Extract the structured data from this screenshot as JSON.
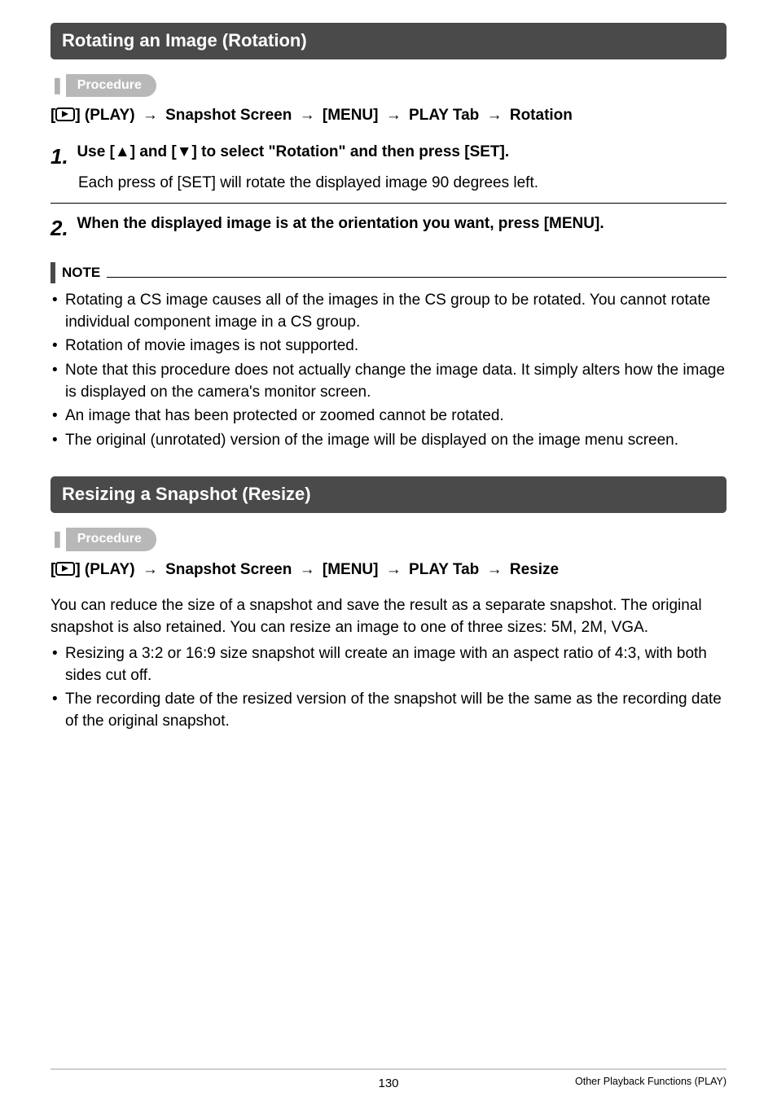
{
  "section1": {
    "title": "Rotating an Image (Rotation)",
    "procedure_label": "Procedure",
    "menu_path": {
      "prefix_bracket": "[",
      "suffix_bracket_label": "] (PLAY)",
      "arrow": "→",
      "seg2": "Snapshot Screen",
      "seg3": "[MENU]",
      "seg4": "PLAY Tab",
      "seg5": "Rotation"
    },
    "step1": {
      "num": "1.",
      "title": "Use [▲] and [▼] to select \"Rotation\" and then press [SET].",
      "body": "Each press of [SET] will rotate the displayed image 90 degrees left."
    },
    "step2": {
      "num": "2.",
      "title": "When the displayed image is at the orientation you want, press [MENU]."
    },
    "note_label": "NOTE",
    "notes": [
      "Rotating a CS image causes all of the images in the CS group to be rotated. You cannot rotate individual component image in a CS group.",
      "Rotation of movie images is not supported.",
      "Note that this procedure does not actually change the image data. It simply alters how the image is displayed on the camera's monitor screen.",
      "An image that has been protected or zoomed cannot be rotated.",
      "The original (unrotated) version of the image will be displayed on the image menu screen."
    ]
  },
  "section2": {
    "title": "Resizing a Snapshot (Resize)",
    "procedure_label": "Procedure",
    "menu_path": {
      "prefix_bracket": "[",
      "suffix_bracket_label": "] (PLAY)",
      "arrow": "→",
      "seg2": "Snapshot Screen",
      "seg3": "[MENU]",
      "seg4": "PLAY Tab",
      "seg5": "Resize"
    },
    "intro": "You can reduce the size of a snapshot and save the result as a separate snapshot. The original snapshot is also retained. You can resize an image to one of three sizes: 5M, 2M, VGA.",
    "notes": [
      "Resizing a 3:2 or 16:9 size snapshot will create an image with an aspect ratio of 4:3, with both sides cut off.",
      "The recording date of the resized version of the snapshot will be the same as the recording date of the original snapshot."
    ]
  },
  "footer": {
    "page": "130",
    "right": "Other Playback Functions (PLAY)"
  }
}
